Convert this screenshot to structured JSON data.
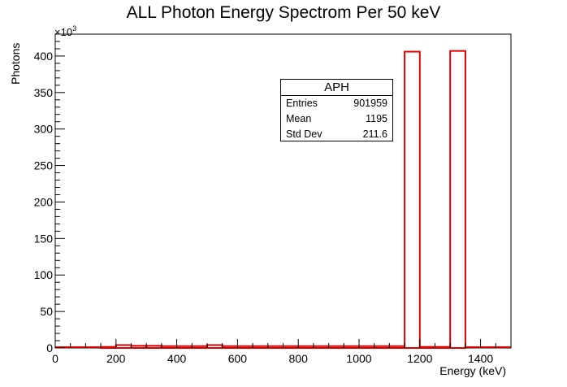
{
  "chart_data": {
    "type": "bar",
    "histogram": true,
    "title": "ALL Photon Energy Spectrom Per 50 keV",
    "xlabel": "Energy (keV)",
    "ylabel": "Photons",
    "y_multiplier_label": "×10",
    "y_multiplier_exponent": "3",
    "xlim": [
      0,
      1500
    ],
    "ylim": [
      0,
      430
    ],
    "bin_width": 50,
    "x_ticks": [
      0,
      200,
      400,
      600,
      800,
      1000,
      1200,
      1400
    ],
    "y_ticks": [
      0,
      50,
      100,
      150,
      200,
      250,
      300,
      350,
      400
    ],
    "series": [
      {
        "color": "#dd0000",
        "x": [
          0,
          50,
          100,
          150,
          200,
          250,
          300,
          350,
          400,
          450,
          500,
          550,
          600,
          650,
          700,
          750,
          800,
          850,
          900,
          950,
          1000,
          1050,
          1100,
          1150,
          1200,
          1250,
          1300,
          1350,
          1400,
          1450
        ],
        "values": [
          0,
          0,
          0,
          1.5,
          4,
          3,
          3,
          2.5,
          2.5,
          2.5,
          4,
          2.5,
          2.5,
          2.5,
          2.5,
          2.5,
          2.5,
          2.5,
          2.5,
          2.5,
          2.5,
          2.5,
          2.5,
          406,
          1.5,
          1.5,
          407,
          0,
          0,
          0
        ]
      }
    ],
    "grid": false,
    "legend": "none",
    "stats": {
      "name": "APH",
      "rows": [
        {
          "label": "Entries",
          "value": "901959"
        },
        {
          "label": "Mean",
          "value": "1195"
        },
        {
          "label": "Std Dev",
          "value": "211.6"
        }
      ]
    }
  }
}
